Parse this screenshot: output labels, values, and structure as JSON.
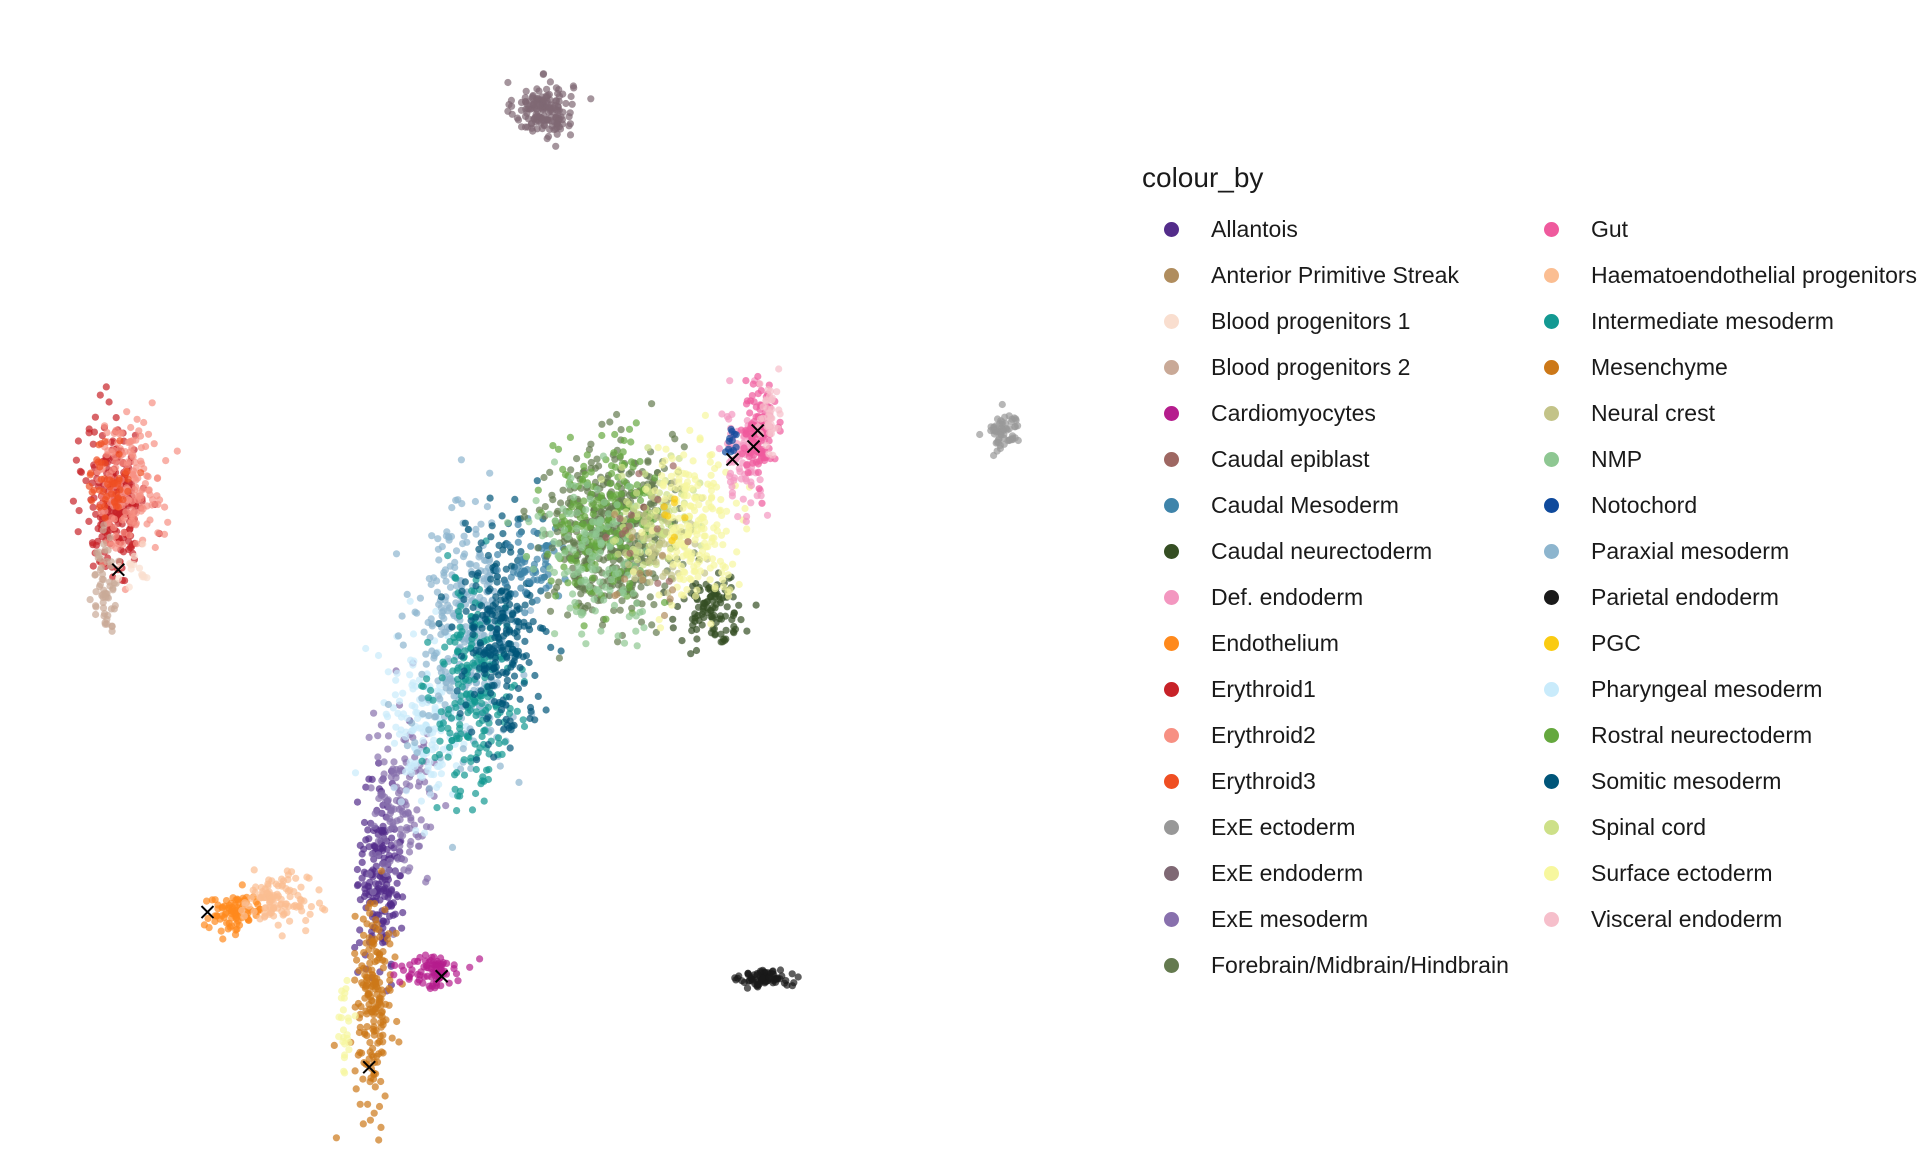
{
  "chart_data": {
    "type": "scatter",
    "title": "",
    "xlabel": "",
    "ylabel": "",
    "grid": false,
    "axes_visible": false,
    "legend": {
      "title": "colour_by",
      "placement": "right",
      "columns": 2,
      "entries": [
        {
          "label": "Allantois",
          "color": "#532C8A"
        },
        {
          "label": "Anterior Primitive Streak",
          "color": "#B08D5E"
        },
        {
          "label": "Blood progenitors 1",
          "color": "#F9DECF"
        },
        {
          "label": "Blood progenitors 2",
          "color": "#C9A997"
        },
        {
          "label": "Cardiomyocytes",
          "color": "#B51D8D"
        },
        {
          "label": "Caudal epiblast",
          "color": "#9E6762"
        },
        {
          "label": "Caudal Mesoderm",
          "color": "#3F84AA"
        },
        {
          "label": "Caudal neurectoderm",
          "color": "#354E23"
        },
        {
          "label": "Def. endoderm",
          "color": "#F397C0"
        },
        {
          "label": "Endothelium",
          "color": "#FF891C"
        },
        {
          "label": "Erythroid1",
          "color": "#C72228"
        },
        {
          "label": "Erythroid2",
          "color": "#F79083"
        },
        {
          "label": "Erythroid3",
          "color": "#EF4E22"
        },
        {
          "label": "ExE ectoderm",
          "color": "#989898"
        },
        {
          "label": "ExE endoderm",
          "color": "#7F6874"
        },
        {
          "label": "ExE mesoderm",
          "color": "#8870AD"
        },
        {
          "label": "Forebrain/Midbrain/Hindbrain",
          "color": "#647A4F"
        },
        {
          "label": "Gut",
          "color": "#EF5A9D"
        },
        {
          "label": "Haematoendothelial progenitors",
          "color": "#FBBE92"
        },
        {
          "label": "Intermediate mesoderm",
          "color": "#139992"
        },
        {
          "label": "Mesenchyme",
          "color": "#CC7818"
        },
        {
          "label": "Neural crest",
          "color": "#C3C388"
        },
        {
          "label": "NMP",
          "color": "#8EC792"
        },
        {
          "label": "Notochord",
          "color": "#0F4A9C"
        },
        {
          "label": "Paraxial mesoderm",
          "color": "#8DB5CE"
        },
        {
          "label": "Parietal endoderm",
          "color": "#1A1A1A"
        },
        {
          "label": "PGC",
          "color": "#FACB12"
        },
        {
          "label": "Pharyngeal mesoderm",
          "color": "#C9EBFB"
        },
        {
          "label": "Rostral neurectoderm",
          "color": "#65A83E"
        },
        {
          "label": "Somitic mesoderm",
          "color": "#005579"
        },
        {
          "label": "Spinal cord",
          "color": "#CDE088"
        },
        {
          "label": "Surface ectoderm",
          "color": "#F7F79E"
        },
        {
          "label": "Visceral endoderm",
          "color": "#F6BFCB"
        }
      ]
    },
    "xlim": [
      0,
      100
    ],
    "ylim": [
      0,
      100
    ],
    "clusters": [
      {
        "label": "ExE endoderm",
        "color": "#7F6874",
        "x": 47.0,
        "y": 93.5,
        "sx": 1.4,
        "sy": 1.3,
        "n": 160
      },
      {
        "label": "ExE ectoderm",
        "color": "#989898",
        "x": 90.8,
        "y": 63.5,
        "sx": 0.8,
        "sy": 0.9,
        "n": 60
      },
      {
        "label": "Parietal endoderm",
        "color": "#1A1A1A",
        "x": 68.2,
        "y": 12.3,
        "sx": 1.2,
        "sy": 0.4,
        "n": 80
      },
      {
        "label": "Erythroid1",
        "color": "#C72228",
        "x": 6.3,
        "y": 57.0,
        "sx": 1.4,
        "sy": 3.5,
        "n": 260
      },
      {
        "label": "Erythroid2",
        "color": "#F79083",
        "x": 7.5,
        "y": 58.5,
        "sx": 1.6,
        "sy": 3.0,
        "n": 160
      },
      {
        "label": "Erythroid3",
        "color": "#EF4E22",
        "x": 5.8,
        "y": 59.0,
        "sx": 1.0,
        "sy": 2.0,
        "n": 50
      },
      {
        "label": "Blood progenitors 2",
        "color": "#C9A997",
        "x": 5.2,
        "y": 49.0,
        "sx": 0.6,
        "sy": 2.2,
        "n": 60
      },
      {
        "label": "Endothelium",
        "color": "#FF891C",
        "x": 17.8,
        "y": 18.5,
        "sx": 1.4,
        "sy": 0.9,
        "n": 90
      },
      {
        "label": "Haematoendothelial progenitors",
        "color": "#FBBE92",
        "x": 21.5,
        "y": 19.5,
        "sx": 1.6,
        "sy": 1.2,
        "n": 110
      },
      {
        "label": "Allantois",
        "color": "#532C8A",
        "x": 31.5,
        "y": 22.0,
        "sx": 1.0,
        "sy": 4.0,
        "n": 190
      },
      {
        "label": "ExE mesoderm",
        "color": "#8870AD",
        "x": 33.5,
        "y": 28.5,
        "sx": 1.6,
        "sy": 4.0,
        "n": 140
      },
      {
        "label": "Mesenchyme",
        "color": "#CC7818",
        "x": 30.8,
        "y": 10.0,
        "sx": 0.9,
        "sy": 4.5,
        "n": 190
      },
      {
        "label": "Cardiomyocytes",
        "color": "#B51D8D",
        "x": 36.5,
        "y": 13.0,
        "sx": 1.4,
        "sy": 0.8,
        "n": 80
      },
      {
        "label": "Surface ectoderm",
        "color": "#F7F79E",
        "x": 28.0,
        "y": 8.0,
        "sx": 0.4,
        "sy": 2.5,
        "n": 25
      },
      {
        "label": "Pharyngeal mesoderm",
        "color": "#C9EBFB",
        "x": 35.5,
        "y": 36.0,
        "sx": 2.0,
        "sy": 4.5,
        "n": 150
      },
      {
        "label": "Paraxial mesoderm",
        "color": "#8DB5CE",
        "x": 39.5,
        "y": 44.0,
        "sx": 2.4,
        "sy": 6.0,
        "n": 330
      },
      {
        "label": "Intermediate mesoderm",
        "color": "#139992",
        "x": 40.5,
        "y": 39.0,
        "sx": 2.0,
        "sy": 5.0,
        "n": 220
      },
      {
        "label": "Somitic mesoderm",
        "color": "#005579",
        "x": 43.0,
        "y": 45.0,
        "sx": 1.8,
        "sy": 5.0,
        "n": 260
      },
      {
        "label": "Caudal Mesoderm",
        "color": "#3F84AA",
        "x": 45.5,
        "y": 51.0,
        "sx": 1.4,
        "sy": 2.0,
        "n": 60
      },
      {
        "label": "Forebrain/Midbrain/Hindbrain",
        "color": "#647A4F",
        "x": 53.5,
        "y": 54.0,
        "sx": 3.0,
        "sy": 4.0,
        "n": 480
      },
      {
        "label": "Rostral neurectoderm",
        "color": "#65A83E",
        "x": 53.0,
        "y": 55.0,
        "sx": 2.6,
        "sy": 3.5,
        "n": 200
      },
      {
        "label": "NMP",
        "color": "#8EC792",
        "x": 52.0,
        "y": 52.0,
        "sx": 3.0,
        "sy": 3.5,
        "n": 140
      },
      {
        "label": "Spinal cord",
        "color": "#CDE088",
        "x": 57.5,
        "y": 55.5,
        "sx": 2.0,
        "sy": 2.5,
        "n": 90
      },
      {
        "label": "Caudal neurectoderm",
        "color": "#354E23",
        "x": 63.0,
        "y": 47.0,
        "sx": 1.6,
        "sy": 1.6,
        "n": 110
      },
      {
        "label": "Neural crest",
        "color": "#C3C388",
        "x": 58.5,
        "y": 53.5,
        "sx": 1.6,
        "sy": 2.2,
        "n": 50
      },
      {
        "label": "Surface ectoderm",
        "color": "#F7F79E",
        "x": 61.5,
        "y": 54.5,
        "sx": 2.2,
        "sy": 3.5,
        "n": 210
      },
      {
        "label": "Def. endoderm",
        "color": "#F397C0",
        "x": 66.0,
        "y": 61.0,
        "sx": 1.0,
        "sy": 2.6,
        "n": 90
      },
      {
        "label": "Gut",
        "color": "#EF5A9D",
        "x": 67.5,
        "y": 63.5,
        "sx": 0.8,
        "sy": 2.0,
        "n": 110
      },
      {
        "label": "Visceral endoderm",
        "color": "#F6BFCB",
        "x": 68.5,
        "y": 65.0,
        "sx": 0.6,
        "sy": 1.6,
        "n": 40
      },
      {
        "label": "Notochord",
        "color": "#0F4A9C",
        "x": 65.0,
        "y": 62.5,
        "sx": 0.3,
        "sy": 0.8,
        "n": 12
      },
      {
        "label": "Blood progenitors 1",
        "color": "#F9DECF",
        "x": 8.0,
        "y": 50.5,
        "sx": 0.8,
        "sy": 1.2,
        "n": 15
      },
      {
        "label": "Anterior Primitive Streak",
        "color": "#B08D5E",
        "x": 56.0,
        "y": 51.0,
        "sx": 2.0,
        "sy": 2.0,
        "n": 12
      },
      {
        "label": "Caudal epiblast",
        "color": "#9E6762",
        "x": 56.5,
        "y": 53.0,
        "sx": 2.5,
        "sy": 3.0,
        "n": 15
      },
      {
        "label": "PGC",
        "color": "#FACB12",
        "x": 59.5,
        "y": 54.5,
        "sx": 0.8,
        "sy": 1.0,
        "n": 8
      }
    ],
    "markers": [
      {
        "x": 6.5,
        "y": 50.5
      },
      {
        "x": 15.0,
        "y": 18.5
      },
      {
        "x": 30.4,
        "y": 4.0
      },
      {
        "x": 37.3,
        "y": 12.5
      },
      {
        "x": 65.0,
        "y": 60.8
      },
      {
        "x": 67.0,
        "y": 62.0
      },
      {
        "x": 67.4,
        "y": 63.5
      }
    ]
  }
}
